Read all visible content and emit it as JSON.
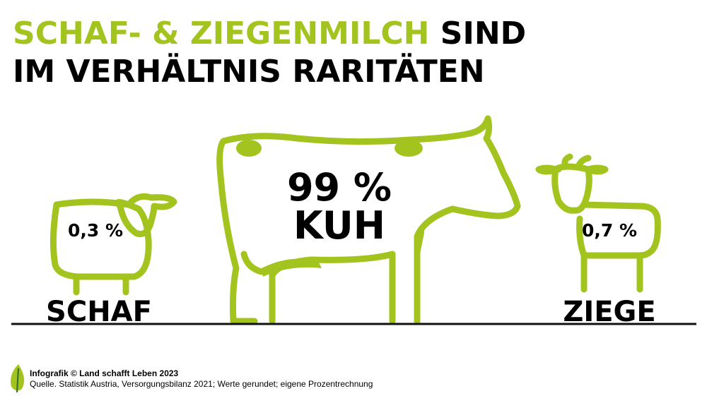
{
  "title": {
    "highlight": "SCHAF- & ZIEGENMILCH",
    "line1_rest": "SIND",
    "line2": "IM VERHÄLTNIS RARITÄTEN"
  },
  "animals": [
    {
      "share": "0,3 %",
      "name": "SCHAF"
    },
    {
      "share": "99 %",
      "name": "KUH"
    },
    {
      "share": "0,7 %",
      "name": "ZIEGE"
    }
  ],
  "footer": {
    "credit": "Infografik © Land schafft Leben 2023",
    "source": "Quelle. Statistik Austria, Versorgungsbilanz 2021; Werte gerundet; eigene Prozentrechnung"
  }
}
